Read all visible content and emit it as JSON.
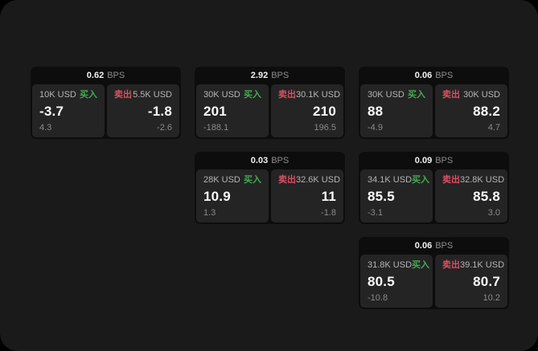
{
  "page": {
    "background": "#1a1a1a",
    "outer_background": "#000000"
  },
  "colors": {
    "buy_green": "#44a954",
    "sell_red": "#d94f63",
    "card_bg": "#0d0d0d",
    "panel_bg": "#242424"
  },
  "cards": [
    {
      "row": 1,
      "col": 1,
      "bps_value": "0.62",
      "bps_unit": "BPS",
      "buy": {
        "amount": "10K USD",
        "side_label": "买入",
        "main": "-3.7",
        "sub": "4.3"
      },
      "sell": {
        "side_label": "卖出",
        "amount": "5.5K USD",
        "main": "-1.8",
        "sub": "-2.6"
      }
    },
    {
      "row": 1,
      "col": 2,
      "bps_value": "2.92",
      "bps_unit": "BPS",
      "buy": {
        "amount": "30K USD",
        "side_label": "买入",
        "main": "201",
        "sub": "-188.1"
      },
      "sell": {
        "side_label": "卖出",
        "amount": "30.1K USD",
        "main": "210",
        "sub": "196.5"
      }
    },
    {
      "row": 1,
      "col": 3,
      "bps_value": "0.06",
      "bps_unit": "BPS",
      "buy": {
        "amount": "30K USD",
        "side_label": "买入",
        "main": "88",
        "sub": "-4.9"
      },
      "sell": {
        "side_label": "卖出",
        "amount": "30K USD",
        "main": "88.2",
        "sub": "4.7"
      }
    },
    {
      "row": 2,
      "col": 2,
      "bps_value": "0.03",
      "bps_unit": "BPS",
      "buy": {
        "amount": "28K USD",
        "side_label": "买入",
        "main": "10.9",
        "sub": "1.3"
      },
      "sell": {
        "side_label": "卖出",
        "amount": "32.6K USD",
        "main": "11",
        "sub": "-1.8"
      }
    },
    {
      "row": 2,
      "col": 3,
      "bps_value": "0.09",
      "bps_unit": "BPS",
      "buy": {
        "amount": "34.1K USD",
        "side_label": "买入",
        "main": "85.5",
        "sub": "-3.1"
      },
      "sell": {
        "side_label": "卖出",
        "amount": "32.8K USD",
        "main": "85.8",
        "sub": "3.0"
      }
    },
    {
      "row": 3,
      "col": 3,
      "bps_value": "0.06",
      "bps_unit": "BPS",
      "buy": {
        "amount": "31.8K USD",
        "side_label": "买入",
        "main": "80.5",
        "sub": "-10.8"
      },
      "sell": {
        "side_label": "卖出",
        "amount": "39.1K USD",
        "main": "80.7",
        "sub": "10.2"
      }
    }
  ]
}
